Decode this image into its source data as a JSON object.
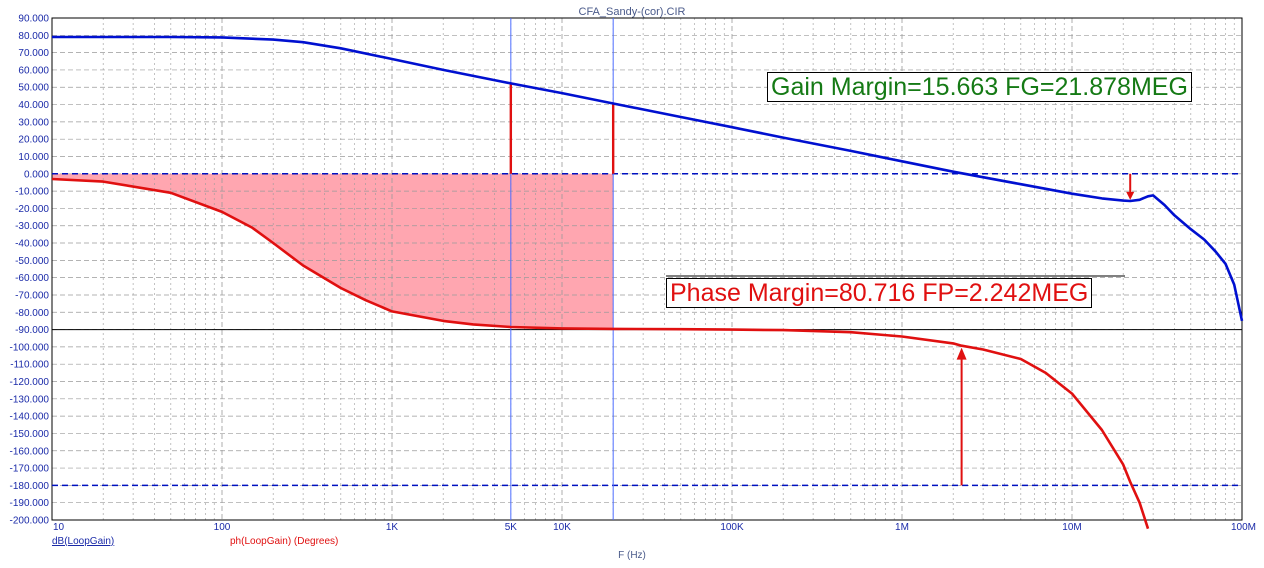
{
  "window": {
    "title": "CFA_Sandy-(cor).CIR"
  },
  "annotations": {
    "gain_margin": "Gain Margin=15.663 FG=21.878MEG",
    "phase_margin": "Phase Margin=80.716 FP=2.242MEG"
  },
  "colors": {
    "gain": "#0010d0",
    "phase": "#e01010",
    "fill": "#ffa6b0",
    "grid": "#9a9a9a",
    "ref": "#0010c0",
    "text_blue": "#1a2aa8"
  },
  "chart_data": {
    "type": "line",
    "title": "CFA_Sandy-(cor).CIR",
    "xlabel": "F (Hz)",
    "x_scale": "log",
    "xlim": [
      10,
      100000000
    ],
    "ylim": [
      -200,
      90
    ],
    "grid": true,
    "x_ticks": [
      {
        "v": 10,
        "label": "10"
      },
      {
        "v": 100,
        "label": "100"
      },
      {
        "v": 1000,
        "label": "1K"
      },
      {
        "v": 5000,
        "label": "5K"
      },
      {
        "v": 10000,
        "label": "10K"
      },
      {
        "v": 100000,
        "label": "100K"
      },
      {
        "v": 1000000,
        "label": "1M"
      },
      {
        "v": 10000000,
        "label": "10M"
      },
      {
        "v": 100000000,
        "label": "100M"
      }
    ],
    "y_ticks": [
      "90.000",
      "80.000",
      "70.000",
      "60.000",
      "50.000",
      "40.000",
      "30.000",
      "20.000",
      "10.000",
      "0.000",
      "-10.000",
      "-20.000",
      "-30.000",
      "-40.000",
      "-50.000",
      "-60.000",
      "-70.000",
      "-80.000",
      "-90.000",
      "-100.000",
      "-110.000",
      "-120.000",
      "-130.000",
      "-140.000",
      "-150.000",
      "-160.000",
      "-170.000",
      "-180.000",
      "-190.000",
      "-200.000"
    ],
    "series": [
      {
        "name": "dB(LoopGain)",
        "color": "#0010d0",
        "x": [
          10,
          50,
          100,
          200,
          300,
          500,
          1000,
          2000,
          5000,
          10000,
          20000,
          50000,
          100000,
          200000,
          500000,
          1000000,
          2000000,
          5000000,
          10000000,
          15000000,
          20000000,
          22000000,
          25000000,
          28000000,
          30000000,
          35000000,
          40000000,
          50000000,
          60000000,
          70000000,
          80000000,
          90000000,
          100000000
        ],
        "y": [
          79,
          79,
          78.8,
          77.5,
          76,
          72.5,
          66.3,
          60,
          52.2,
          46.6,
          40.6,
          32.8,
          26.9,
          20.9,
          13.2,
          7.2,
          1.2,
          -6,
          -11.5,
          -14.2,
          -15.5,
          -15.7,
          -15,
          -13,
          -12.5,
          -18,
          -24,
          -32,
          -38,
          -45,
          -52,
          -64,
          -85
        ]
      },
      {
        "name": "ph(LoopGain) (Degrees)",
        "color": "#e01010",
        "x": [
          10,
          20,
          50,
          100,
          150,
          200,
          300,
          500,
          700,
          1000,
          2000,
          3000,
          5000,
          10000,
          20000,
          50000,
          100000,
          200000,
          500000,
          1000000,
          2000000,
          2242000,
          3000000,
          5000000,
          7000000,
          10000000,
          15000000,
          20000000,
          22000000,
          25000000,
          28000000
        ],
        "y": [
          -3,
          -4.5,
          -11,
          -22,
          -31,
          -40,
          -53,
          -66,
          -73,
          -79.5,
          -85,
          -87,
          -88.5,
          -89.3,
          -89.6,
          -89.8,
          -90,
          -90.3,
          -91.5,
          -94,
          -98,
          -99.3,
          -101.5,
          -107,
          -115,
          -127,
          -148,
          -168,
          -178,
          -190,
          -205
        ]
      }
    ],
    "reference_lines": [
      0,
      -90,
      -180
    ],
    "filled_region": {
      "x_from": 10,
      "x_to": 20000,
      "between": [
        -90,
        0
      ]
    },
    "cursor_lines_x": [
      5000,
      20000
    ],
    "gain_margin_marker": {
      "x": 22000000,
      "from": 0,
      "to": -15.663
    },
    "phase_margin_marker": {
      "x": 2242000,
      "from": -180,
      "to": -99.284
    }
  }
}
